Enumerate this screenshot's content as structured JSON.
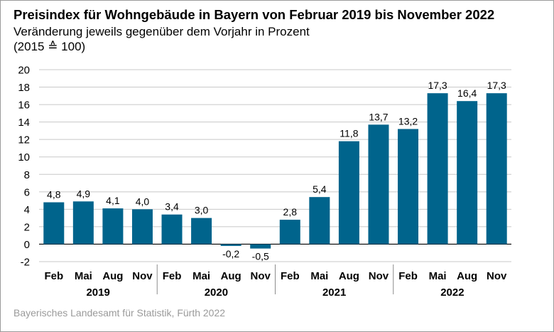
{
  "chart_data": {
    "type": "bar",
    "title": "Preisindex für Wohngebäude in Bayern von Februar 2019 bis November 2022",
    "subtitle": "Veränderung jeweils gegenüber dem Vorjahr in Prozent",
    "subtitle2": "(2015 ≙ 100)",
    "source": "Bayerisches Landesamt für Statistik, Fürth 2022",
    "categories": [
      "Feb",
      "Mai",
      "Aug",
      "Nov",
      "Feb",
      "Mai",
      "Aug",
      "Nov",
      "Feb",
      "Mai",
      "Aug",
      "Nov",
      "Feb",
      "Mai",
      "Aug",
      "Nov"
    ],
    "groups": [
      {
        "label": "2019",
        "count": 4
      },
      {
        "label": "2020",
        "count": 4
      },
      {
        "label": "2021",
        "count": 4
      },
      {
        "label": "2022",
        "count": 4
      }
    ],
    "values": [
      4.8,
      4.9,
      4.1,
      4.0,
      3.4,
      3.0,
      -0.2,
      -0.5,
      2.8,
      5.4,
      11.8,
      13.7,
      13.2,
      17.3,
      16.4,
      17.3
    ],
    "value_labels": [
      "4,8",
      "4,9",
      "4,1",
      "4,0",
      "3,4",
      "3,0",
      "-0,2",
      "-0,5",
      "2,8",
      "5,4",
      "11,8",
      "13,7",
      "13,2",
      "17,3",
      "16,4",
      "17,3"
    ],
    "yticks": [
      -2,
      0,
      2,
      4,
      6,
      8,
      10,
      12,
      14,
      16,
      18,
      20
    ],
    "ylim": [
      -2,
      20
    ],
    "grid": true,
    "bar_color": "#00648c",
    "grid_color": "#c8c8c8",
    "xlabel": "",
    "ylabel": ""
  }
}
